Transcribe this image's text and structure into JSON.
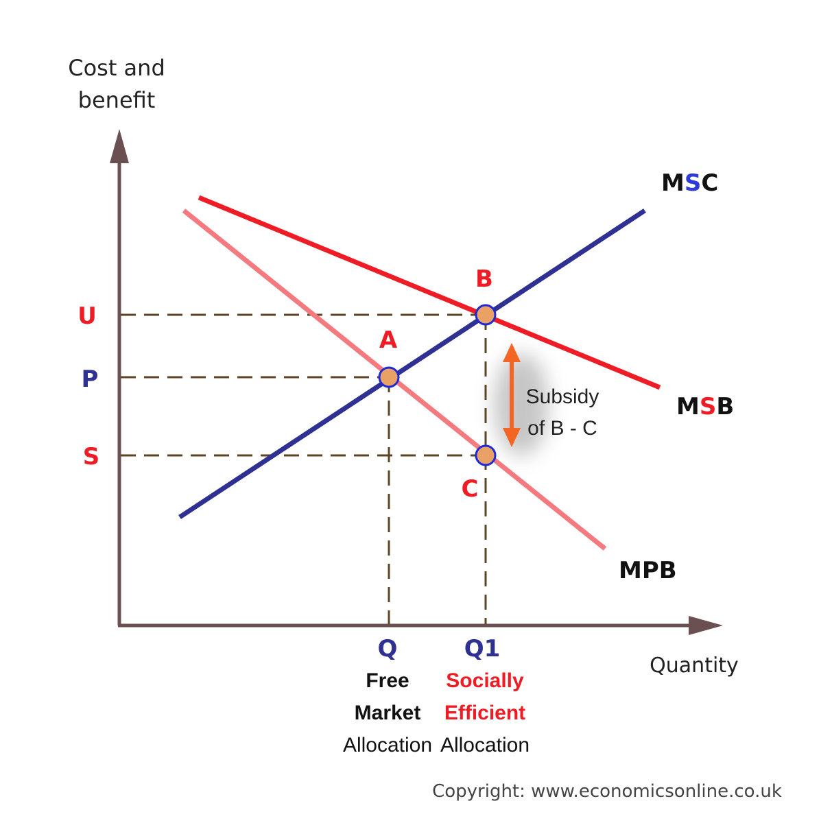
{
  "axes": {
    "y_label_line1": "Cost and",
    "y_label_line2": "benefit",
    "x_label": "Quantity"
  },
  "curves": {
    "msc": {
      "prefix": "M",
      "middle": "S",
      "suffix": "C"
    },
    "msb": {
      "prefix": "M",
      "middle": "S",
      "suffix": "B"
    },
    "mpb": "MPB"
  },
  "points": {
    "a": "A",
    "b": "B",
    "c": "C"
  },
  "price_levels": {
    "u": "U",
    "p": "P",
    "s": "S"
  },
  "quantities": {
    "q": {
      "label": "Q",
      "line1": "Free",
      "line2": "Market",
      "line3": "Allocation"
    },
    "q1": {
      "label": "Q1",
      "line1": "Socially",
      "line2": "Efficient",
      "line3": "Allocation"
    }
  },
  "subsidy": {
    "line1": "Subsidy",
    "line2": "of B - C"
  },
  "copyright": "Copyright: www.economicsonline.co.uk",
  "colors": {
    "axis": "#6a5050",
    "msc": "#2e3192",
    "msb": "#ee1c25",
    "mpb": "#f47a80",
    "dash": "#5c4424",
    "point_fill": "#e9a166",
    "arrow": "#f26522"
  }
}
